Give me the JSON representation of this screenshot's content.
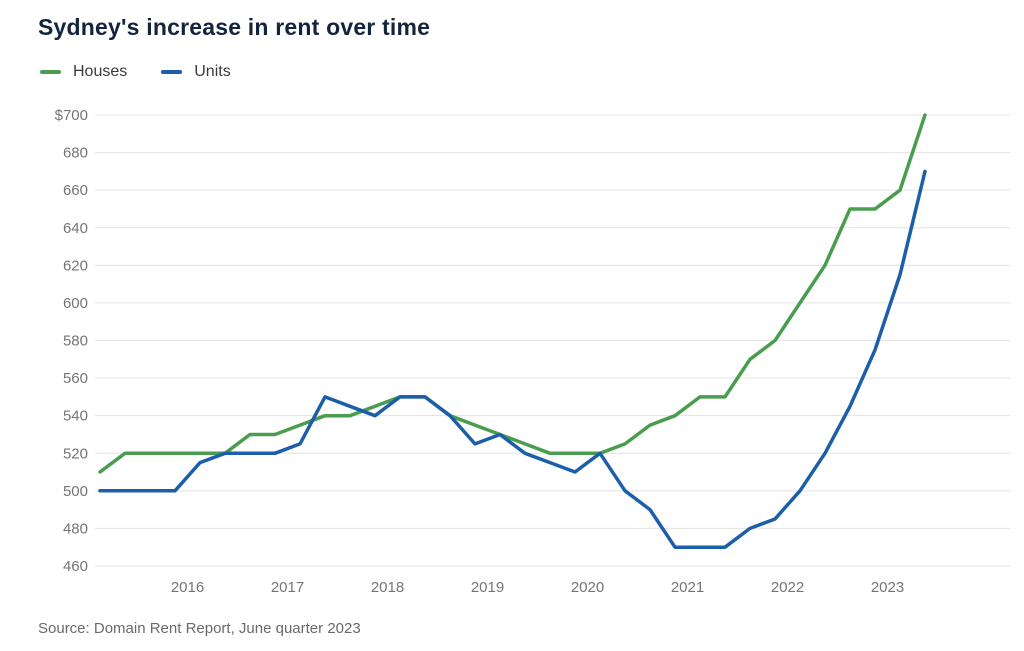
{
  "chart_data": {
    "type": "line",
    "title": "Sydney's increase in rent over time",
    "source": "Source: Domain Rent Report, June quarter 2023",
    "ylabel": "",
    "xlabel": "",
    "ylim": [
      460,
      700
    ],
    "grid": "horizontal",
    "legend_position": "top-left",
    "y_ticks": [
      700,
      680,
      660,
      640,
      620,
      600,
      580,
      560,
      540,
      520,
      500,
      480,
      460
    ],
    "y_tick_labels": [
      "$700",
      "680",
      "660",
      "640",
      "620",
      "600",
      "580",
      "560",
      "540",
      "520",
      "500",
      "480",
      "460"
    ],
    "x_tick_labels": [
      "2016",
      "2017",
      "2018",
      "2019",
      "2020",
      "2021",
      "2022",
      "2023"
    ],
    "x": [
      "2015 Q1",
      "2015 Q2",
      "2015 Q3",
      "2015 Q4",
      "2016 Q1",
      "2016 Q2",
      "2016 Q3",
      "2016 Q4",
      "2017 Q1",
      "2017 Q2",
      "2017 Q3",
      "2017 Q4",
      "2018 Q1",
      "2018 Q2",
      "2018 Q3",
      "2018 Q4",
      "2019 Q1",
      "2019 Q2",
      "2019 Q3",
      "2019 Q4",
      "2020 Q1",
      "2020 Q2",
      "2020 Q3",
      "2020 Q4",
      "2021 Q1",
      "2021 Q2",
      "2021 Q3",
      "2021 Q4",
      "2022 Q1",
      "2022 Q2",
      "2022 Q3",
      "2022 Q4",
      "2023 Q1",
      "2023 Q2"
    ],
    "series": [
      {
        "name": "Houses",
        "color": "#4a9d4f",
        "values": [
          510,
          520,
          520,
          520,
          520,
          520,
          530,
          530,
          535,
          540,
          540,
          545,
          550,
          550,
          540,
          535,
          530,
          525,
          520,
          520,
          520,
          525,
          535,
          540,
          550,
          550,
          570,
          580,
          600,
          620,
          650,
          650,
          660,
          700
        ]
      },
      {
        "name": "Units",
        "color": "#1c5ea9",
        "values": [
          500,
          500,
          500,
          500,
          515,
          520,
          520,
          520,
          525,
          550,
          545,
          540,
          550,
          550,
          540,
          525,
          530,
          520,
          515,
          510,
          520,
          500,
          490,
          470,
          470,
          470,
          480,
          485,
          500,
          520,
          545,
          575,
          615,
          670
        ]
      }
    ],
    "colors": {
      "title": "#14243e",
      "axis_label": "#757575",
      "gridline": "#e3e3e3",
      "legend_text": "#3a3a3a",
      "source_text": "#6a6a6a"
    }
  }
}
